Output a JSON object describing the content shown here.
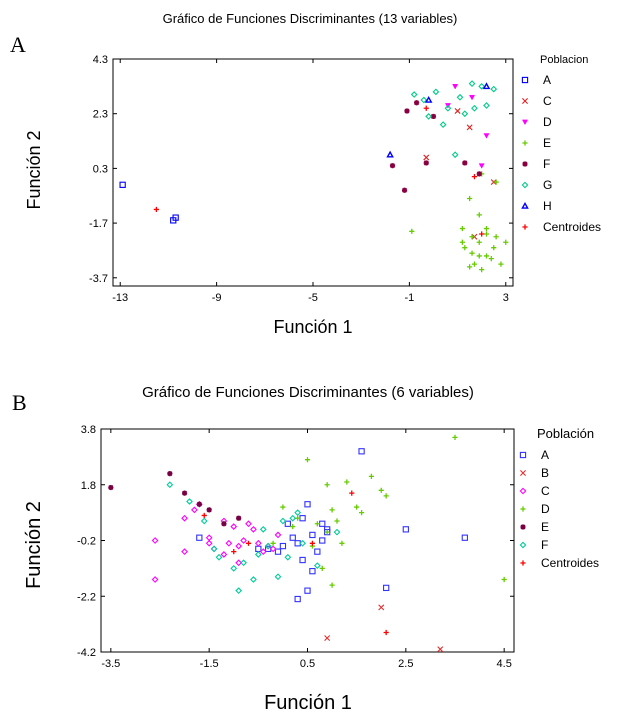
{
  "charts": [
    {
      "letter": "A",
      "chart_data": {
        "type": "scatter",
        "title": "Gráfico de Funciones Discriminantes (13 variables)",
        "xlabel": "Función 1",
        "ylabel": "Función 2",
        "xlim": [
          -13.3,
          3.3
        ],
        "ylim": [
          -4.0,
          4.3
        ],
        "xticks": [
          "-13",
          "-9",
          "-5",
          "-1",
          "3"
        ],
        "xtick_values": [
          -13,
          -9,
          -5,
          -1,
          3
        ],
        "yticks": [
          "4.3",
          "2.3",
          "0.3",
          "-1.7",
          "-3.7"
        ],
        "ytick_values": [
          4.3,
          2.3,
          0.3,
          -1.7,
          -3.7
        ],
        "legend_title": "Poblacion",
        "legend_position": "right",
        "series": [
          {
            "name": "A",
            "marker": "square",
            "color": "#0000ff",
            "x": [
              -12.9,
              -10.8,
              -10.7
            ],
            "y": [
              -0.3,
              -1.6,
              -1.5
            ]
          },
          {
            "name": "C",
            "marker": "x",
            "color": "#e02020",
            "x": [
              -0.3,
              2.5,
              1.7,
              1.0,
              1.5
            ],
            "y": [
              0.7,
              -0.2,
              -2.2,
              2.4,
              1.8
            ]
          },
          {
            "name": "D",
            "marker": "triangle-down",
            "color": "#ff00ff",
            "x": [
              2.0,
              2.2,
              0.6,
              1.6,
              0.9
            ],
            "y": [
              0.4,
              1.5,
              2.6,
              2.9,
              3.3
            ]
          },
          {
            "name": "E",
            "marker": "plus",
            "color": "#66cc00",
            "x": [
              -0.9,
              1.2,
              1.6,
              1.9,
              2.2,
              2.5,
              2.8,
              3.0,
              2.6,
              2.2,
              1.9,
              1.3,
              1.5,
              2.0,
              2.4,
              1.7,
              1.9,
              1.6,
              1.2,
              2.2,
              2.0,
              2.6,
              1.5
            ],
            "y": [
              -2.0,
              -2.4,
              -2.8,
              -2.4,
              -2.9,
              -2.6,
              -3.2,
              -2.4,
              -2.2,
              -1.9,
              -1.4,
              -2.6,
              -3.3,
              -3.4,
              -3.0,
              -3.2,
              -2.9,
              -2.2,
              -1.9,
              -2.1,
              0.1,
              -0.2,
              -0.8
            ]
          },
          {
            "name": "F",
            "marker": "asterisk",
            "color": "#880040",
            "x": [
              -1.7,
              -1.1,
              -1.2,
              0.0,
              -0.7,
              -0.3,
              1.3,
              1.9
            ],
            "y": [
              0.4,
              2.4,
              -0.5,
              2.2,
              2.7,
              0.5,
              0.5,
              0.1
            ]
          },
          {
            "name": "G",
            "marker": "diamond",
            "color": "#00cc88",
            "x": [
              -0.8,
              -0.4,
              0.1,
              0.6,
              1.1,
              1.6,
              2.0,
              2.5,
              -0.2,
              0.4,
              1.3,
              1.7,
              2.2,
              0.9
            ],
            "y": [
              3.0,
              2.8,
              3.1,
              2.5,
              2.9,
              3.4,
              3.3,
              3.2,
              2.2,
              1.9,
              2.3,
              2.5,
              2.6,
              0.8
            ]
          },
          {
            "name": "H",
            "marker": "triangle-up",
            "color": "#0000ff",
            "x": [
              -1.8,
              -0.2,
              2.2
            ],
            "y": [
              0.8,
              2.8,
              3.3
            ]
          },
          {
            "name": "Centroides",
            "marker": "plus",
            "color": "#ff0000",
            "x": [
              -11.5,
              -0.3,
              2.0,
              1.7
            ],
            "y": [
              -1.2,
              2.5,
              -2.1,
              0.0
            ]
          }
        ]
      }
    },
    {
      "letter": "B",
      "chart_data": {
        "type": "scatter",
        "title": "Gráfico de Funciones Discriminantes (6 variables)",
        "xlabel": "Función 1",
        "ylabel": "Función 2",
        "xlim": [
          -3.7,
          4.7
        ],
        "ylim": [
          -4.2,
          3.8
        ],
        "xticks": [
          "-3.5",
          "-1.5",
          "0.5",
          "2.5",
          "4.5"
        ],
        "xtick_values": [
          -3.5,
          -1.5,
          0.5,
          2.5,
          4.5
        ],
        "yticks": [
          "3.8",
          "1.8",
          "-0.2",
          "-2.2",
          "-4.2"
        ],
        "ytick_values": [
          3.8,
          1.8,
          -0.2,
          -2.2,
          -4.2
        ],
        "legend_title": "Población",
        "legend_position": "right",
        "series": [
          {
            "name": "A",
            "marker": "square",
            "color": "#3333ff",
            "x": [
              1.6,
              2.5,
              3.7,
              2.1,
              -1.7,
              -0.5,
              -0.1,
              0.1,
              0.2,
              0.4,
              0.5,
              0.6,
              0.7,
              0.8,
              0.9,
              0.3,
              0.4,
              0.5,
              0.6,
              0.3,
              0.0,
              -0.3,
              0.9,
              0.8
            ],
            "y": [
              3.0,
              0.2,
              -0.1,
              -1.9,
              -0.1,
              -0.5,
              -0.6,
              0.4,
              -0.1,
              0.6,
              1.1,
              0.0,
              -0.6,
              0.4,
              0.1,
              -0.3,
              -0.9,
              -2.0,
              -1.3,
              -2.3,
              -0.4,
              -0.5,
              0.2,
              -0.2
            ]
          },
          {
            "name": "B",
            "marker": "x",
            "color": "#e03030",
            "x": [
              0.9,
              2.0,
              3.2
            ],
            "y": [
              -3.7,
              -2.6,
              -4.1
            ]
          },
          {
            "name": "C",
            "marker": "diamond",
            "color": "#ff00ff",
            "x": [
              -2.6,
              -2.0,
              -1.8,
              -1.5,
              -1.4,
              -1.2,
              -1.1,
              -1.0,
              -0.9,
              -0.8,
              -0.7,
              -0.6,
              -0.5,
              -0.4,
              -0.3,
              -0.2,
              -0.1,
              -0.9,
              -1.2,
              -1.5,
              -2.0,
              -2.6,
              -1.7
            ],
            "y": [
              -0.2,
              0.6,
              0.9,
              -0.1,
              -0.5,
              0.5,
              -0.3,
              0.3,
              -0.4,
              -0.2,
              0.4,
              0.2,
              -0.3,
              -0.6,
              -0.4,
              -0.5,
              0.0,
              -1.0,
              -0.7,
              -0.3,
              -0.6,
              -1.6,
              1.1
            ]
          },
          {
            "name": "D",
            "marker": "plus",
            "color": "#66cc00",
            "x": [
              3.5,
              2.0,
              1.8,
              2.1,
              1.3,
              0.5,
              0.9,
              1.0,
              1.5,
              1.6,
              0.3,
              0.7,
              0.9,
              1.1,
              0.6,
              0.2,
              -0.2,
              0.0,
              4.5,
              1.0,
              0.8,
              1.2
            ],
            "y": [
              3.5,
              1.6,
              2.1,
              1.4,
              1.9,
              2.7,
              1.8,
              0.9,
              1.0,
              0.8,
              0.6,
              0.4,
              0.1,
              0.5,
              -0.4,
              0.3,
              -0.3,
              1.0,
              -1.6,
              -1.8,
              -1.2,
              -0.3
            ]
          },
          {
            "name": "E",
            "marker": "asterisk",
            "color": "#770044",
            "x": [
              -3.5,
              -2.3,
              -2.0,
              -1.7,
              -1.5,
              -1.2,
              -0.9
            ],
            "y": [
              1.7,
              2.2,
              1.5,
              1.1,
              0.9,
              0.4,
              0.6
            ]
          },
          {
            "name": "F",
            "marker": "diamond",
            "color": "#00cc99",
            "x": [
              -2.3,
              -1.9,
              -1.6,
              -1.3,
              -1.0,
              -0.8,
              -0.5,
              -0.3,
              0.0,
              0.2,
              0.4,
              -0.9,
              -0.6,
              -0.1,
              1.1,
              0.7,
              -1.4,
              -0.4,
              0.1,
              0.3
            ],
            "y": [
              1.8,
              1.2,
              0.5,
              -0.8,
              -1.2,
              -1.0,
              -0.7,
              -0.4,
              0.5,
              0.6,
              -0.3,
              -2.0,
              -1.6,
              -1.5,
              0.1,
              -1.1,
              -0.5,
              0.2,
              -0.8,
              0.8
            ]
          },
          {
            "name": "Centroides",
            "marker": "plus",
            "color": "#ff0000",
            "x": [
              -1.6,
              2.1,
              -0.7,
              0.6,
              1.4,
              -1.0
            ],
            "y": [
              0.7,
              -3.5,
              -0.3,
              -0.3,
              1.5,
              -0.6
            ]
          }
        ]
      }
    }
  ]
}
